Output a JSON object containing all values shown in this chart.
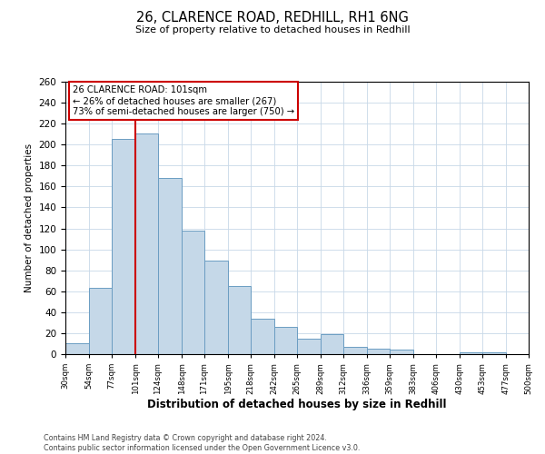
{
  "title1": "26, CLARENCE ROAD, REDHILL, RH1 6NG",
  "title2": "Size of property relative to detached houses in Redhill",
  "xlabel": "Distribution of detached houses by size in Redhill",
  "ylabel": "Number of detached properties",
  "bins": [
    30,
    54,
    77,
    101,
    124,
    148,
    171,
    195,
    218,
    242,
    265,
    289,
    312,
    336,
    359,
    383,
    406,
    430,
    453,
    477,
    500
  ],
  "values": [
    10,
    63,
    205,
    211,
    168,
    118,
    89,
    65,
    34,
    26,
    15,
    19,
    7,
    5,
    4,
    0,
    0,
    2,
    2,
    0
  ],
  "bar_color": "#c5d8e8",
  "bar_edge_color": "#6b9dc2",
  "vline_x": 101,
  "vline_color": "#cc0000",
  "annotation_line1": "26 CLARENCE ROAD: 101sqm",
  "annotation_line2": "← 26% of detached houses are smaller (267)",
  "annotation_line3": "73% of semi-detached houses are larger (750) →",
  "annotation_box_color": "#ffffff",
  "annotation_box_edge_color": "#cc0000",
  "ylim": [
    0,
    260
  ],
  "yticks": [
    0,
    20,
    40,
    60,
    80,
    100,
    120,
    140,
    160,
    180,
    200,
    220,
    240,
    260
  ],
  "tick_labels": [
    "30sqm",
    "54sqm",
    "77sqm",
    "101sqm",
    "124sqm",
    "148sqm",
    "171sqm",
    "195sqm",
    "218sqm",
    "242sqm",
    "265sqm",
    "289sqm",
    "312sqm",
    "336sqm",
    "359sqm",
    "383sqm",
    "406sqm",
    "430sqm",
    "453sqm",
    "477sqm",
    "500sqm"
  ],
  "footer1": "Contains HM Land Registry data © Crown copyright and database right 2024.",
  "footer2": "Contains public sector information licensed under the Open Government Licence v3.0.",
  "bg_color": "#ffffff",
  "grid_color": "#c8d8e8",
  "figsize": [
    6.0,
    5.0
  ],
  "dpi": 100
}
